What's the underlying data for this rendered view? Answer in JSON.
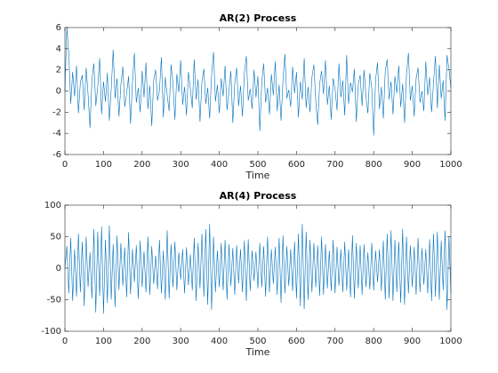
{
  "chart_data": [
    {
      "type": "line",
      "title": "AR(2) Process",
      "x_label": "Time",
      "x": [
        0,
        5,
        10,
        15,
        20,
        25,
        30,
        35,
        40,
        45,
        50,
        55,
        60,
        65,
        70,
        75,
        80,
        85,
        90,
        95,
        100,
        105,
        110,
        115,
        120,
        125,
        130,
        135,
        140,
        145,
        150,
        155,
        160,
        165,
        170,
        175,
        180,
        185,
        190,
        195,
        200,
        205,
        210,
        215,
        220,
        225,
        230,
        235,
        240,
        245,
        250,
        255,
        260,
        265,
        270,
        275,
        280,
        285,
        290,
        295,
        300,
        305,
        310,
        315,
        320,
        325,
        330,
        335,
        340,
        345,
        350,
        355,
        360,
        365,
        370,
        375,
        380,
        385,
        390,
        395,
        400,
        405,
        410,
        415,
        420,
        425,
        430,
        435,
        440,
        445,
        450,
        455,
        460,
        465,
        470,
        475,
        480,
        485,
        490,
        495,
        500,
        505,
        510,
        515,
        520,
        525,
        530,
        535,
        540,
        545,
        550,
        555,
        560,
        565,
        570,
        575,
        580,
        585,
        590,
        595,
        600,
        605,
        610,
        615,
        620,
        625,
        630,
        635,
        640,
        645,
        650,
        655,
        660,
        665,
        670,
        675,
        680,
        685,
        690,
        695,
        700,
        705,
        710,
        715,
        720,
        725,
        730,
        735,
        740,
        745,
        750,
        755,
        760,
        765,
        770,
        775,
        780,
        785,
        790,
        795,
        800,
        805,
        810,
        815,
        820,
        825,
        830,
        835,
        840,
        845,
        850,
        855,
        860,
        865,
        870,
        875,
        880,
        885,
        890,
        895,
        900,
        905,
        910,
        915,
        920,
        925,
        930,
        935,
        940,
        945,
        950,
        955,
        960,
        965,
        970,
        975,
        980,
        985,
        990,
        995,
        1000
      ],
      "series": [
        {
          "color": "#0072bd",
          "values": [
            0,
            6,
            3.5,
            -1.2,
            1.8,
            -0.5,
            2.4,
            -2.1,
            0.8,
            1.5,
            -1.8,
            2.2,
            -0.3,
            -3.5,
            1.1,
            2.6,
            -1.4,
            0.4,
            3.1,
            -2.2,
            0.9,
            -1.0,
            1.7,
            -2.8,
            0.2,
            3.9,
            -0.7,
            1.2,
            -2.4,
            0.6,
            2.3,
            -1.5,
            -0.2,
            1.4,
            -3.1,
            0.8,
            3.6,
            -1.1,
            0.3,
            -2.0,
            1.9,
            -0.6,
            2.7,
            -1.7,
            0.5,
            -3.3,
            1.0,
            2.0,
            -0.9,
            0.1,
            3.2,
            -2.5,
            1.3,
            -0.4,
            -1.9,
            2.5,
            0.7,
            -2.7,
            1.6,
            -0.1,
            2.9,
            -1.3,
            0.4,
            -2.3,
            1.8,
            0.2,
            -1.6,
            3.0,
            -0.8,
            1.1,
            -2.9,
            0.9,
            2.1,
            -1.2,
            0.3,
            -2.6,
            1.5,
            3.7,
            -1.0,
            0.6,
            -2.1,
            1.2,
            -0.5,
            2.4,
            -1.8,
            0.0,
            1.9,
            -3.0,
            0.7,
            2.2,
            -1.4,
            0.5,
            -2.4,
            1.7,
            3.3,
            -0.9,
            0.2,
            -1.7,
            2.0,
            -0.6,
            1.4,
            -3.8,
            0.8,
            2.6,
            -1.1,
            0.3,
            -2.2,
            1.6,
            -0.4,
            2.8,
            -1.9,
            0.6,
            -2.8,
            1.0,
            3.5,
            -0.7,
            0.1,
            -1.5,
            2.3,
            -0.2,
            1.8,
            -2.5,
            0.9,
            -0.8,
            3.1,
            -1.6,
            0.4,
            -2.0,
            1.3,
            2.5,
            -1.0,
            -3.2,
            0.7,
            1.9,
            -0.3,
            2.9,
            -1.3,
            0.5,
            -2.7,
            1.2,
            0.2,
            -1.8,
            2.6,
            -0.6,
            1.0,
            -2.3,
            3.4,
            -1.2,
            0.8,
            -0.1,
            2.1,
            -2.9,
            0.6,
            1.5,
            -1.4,
            2.0,
            -0.5,
            -2.1,
            1.7,
            0.3,
            -4.2,
            1.1,
            2.7,
            -1.7,
            0.4,
            -2.6,
            1.9,
            3.0,
            -0.8,
            0.9,
            -2.2,
            1.4,
            -0.2,
            2.4,
            -1.5,
            0.7,
            -3.0,
            1.6,
            3.6,
            -0.9,
            0.5,
            -2.4,
            1.2,
            2.2,
            -1.1,
            0.0,
            -1.9,
            2.8,
            -0.4,
            1.3,
            -2.0,
            0.8,
            3.3,
            -1.6,
            2.5,
            -0.7,
            1.0,
            -2.8,
            3.4,
            2.1,
            0.3
          ]
        }
      ],
      "xlim": [
        0,
        1000
      ],
      "xticks": [
        0,
        100,
        200,
        300,
        400,
        500,
        600,
        700,
        800,
        900,
        1000
      ],
      "ylim": [
        -6,
        6
      ],
      "yticks": [
        -6,
        -4,
        -2,
        0,
        2,
        4,
        6
      ]
    },
    {
      "type": "line",
      "title": "AR(4) Process",
      "x_label": "Time",
      "x": [
        0,
        5,
        10,
        15,
        20,
        25,
        30,
        35,
        40,
        45,
        50,
        55,
        60,
        65,
        70,
        75,
        80,
        85,
        90,
        95,
        100,
        105,
        110,
        115,
        120,
        125,
        130,
        135,
        140,
        145,
        150,
        155,
        160,
        165,
        170,
        175,
        180,
        185,
        190,
        195,
        200,
        205,
        210,
        215,
        220,
        225,
        230,
        235,
        240,
        245,
        250,
        255,
        260,
        265,
        270,
        275,
        280,
        285,
        290,
        295,
        300,
        305,
        310,
        315,
        320,
        325,
        330,
        335,
        340,
        345,
        350,
        355,
        360,
        365,
        370,
        375,
        380,
        385,
        390,
        395,
        400,
        405,
        410,
        415,
        420,
        425,
        430,
        435,
        440,
        445,
        450,
        455,
        460,
        465,
        470,
        475,
        480,
        485,
        490,
        495,
        500,
        505,
        510,
        515,
        520,
        525,
        530,
        535,
        540,
        545,
        550,
        555,
        560,
        565,
        570,
        575,
        580,
        585,
        590,
        595,
        600,
        605,
        610,
        615,
        620,
        625,
        630,
        635,
        640,
        645,
        650,
        655,
        660,
        665,
        670,
        675,
        680,
        685,
        690,
        695,
        700,
        705,
        710,
        715,
        720,
        725,
        730,
        735,
        740,
        745,
        750,
        755,
        760,
        765,
        770,
        775,
        780,
        785,
        790,
        795,
        800,
        805,
        810,
        815,
        820,
        825,
        830,
        835,
        840,
        845,
        850,
        855,
        860,
        865,
        870,
        875,
        880,
        885,
        890,
        895,
        900,
        905,
        910,
        915,
        920,
        925,
        930,
        935,
        940,
        945,
        950,
        955,
        960,
        965,
        970,
        975,
        980,
        985,
        990,
        995,
        1000
      ],
      "series": [
        {
          "color": "#0072bd",
          "values": [
            0,
            35,
            -40,
            48,
            -52,
            30,
            -45,
            55,
            -38,
            42,
            -60,
            50,
            -30,
            25,
            -48,
            62,
            -70,
            58,
            -44,
            66,
            -72,
            45,
            -55,
            68,
            -50,
            38,
            -62,
            52,
            -35,
            40,
            -28,
            33,
            -46,
            57,
            -41,
            30,
            -22,
            36,
            -49,
            44,
            -30,
            27,
            -38,
            50,
            -42,
            35,
            -25,
            20,
            -33,
            45,
            -40,
            28,
            -50,
            60,
            -48,
            38,
            -30,
            42,
            -35,
            25,
            -18,
            30,
            -40,
            33,
            -27,
            22,
            -35,
            48,
            -52,
            40,
            -32,
            55,
            -45,
            62,
            -58,
            70,
            -66,
            50,
            -38,
            28,
            -30,
            40,
            -35,
            45,
            -50,
            38,
            -28,
            32,
            -42,
            36,
            -24,
            30,
            -38,
            44,
            -52,
            46,
            -36,
            28,
            -20,
            26,
            -32,
            40,
            -30,
            35,
            -45,
            50,
            -38,
            30,
            -25,
            34,
            -42,
            48,
            -55,
            52,
            -40,
            35,
            -28,
            30,
            -36,
            42,
            -48,
            55,
            -60,
            70,
            -65,
            58,
            -50,
            45,
            -38,
            40,
            -30,
            36,
            -44,
            50,
            -42,
            38,
            -32,
            28,
            -36,
            45,
            -40,
            34,
            -28,
            30,
            -38,
            42,
            -35,
            30,
            -46,
            52,
            -48,
            40,
            -32,
            36,
            -42,
            38,
            -30,
            25,
            -34,
            40,
            -35,
            28,
            -22,
            30,
            -36,
            44,
            -50,
            55,
            -48,
            60,
            -52,
            45,
            -38,
            42,
            -55,
            62,
            -58,
            50,
            -40,
            36,
            -30,
            34,
            -42,
            48,
            -38,
            32,
            -26,
            30,
            -40,
            46,
            -52,
            55,
            -45,
            58,
            -50,
            44,
            -35,
            60,
            -66,
            50,
            -40
          ]
        }
      ],
      "xlim": [
        0,
        1000
      ],
      "xticks": [
        0,
        100,
        200,
        300,
        400,
        500,
        600,
        700,
        800,
        900,
        1000
      ],
      "ylim": [
        -100,
        100
      ],
      "yticks": [
        -100,
        -50,
        0,
        50,
        100
      ]
    }
  ]
}
